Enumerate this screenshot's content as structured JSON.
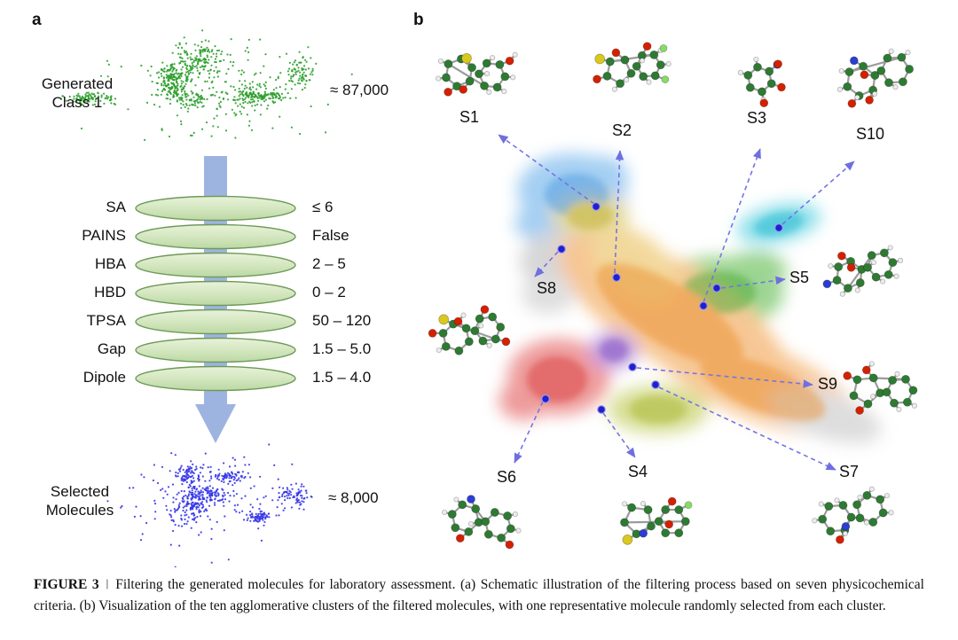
{
  "figure": {
    "panel_a": {
      "label": "a",
      "generated": {
        "label": "Generated\nClass 1",
        "count": "≈ 87,000"
      },
      "filters": [
        {
          "name": "SA",
          "value": "≤ 6"
        },
        {
          "name": "PAINS",
          "value": "False"
        },
        {
          "name": "HBA",
          "value": "2 – 5"
        },
        {
          "name": "HBD",
          "value": "0 – 2"
        },
        {
          "name": "TPSA",
          "value": "50 – 120"
        },
        {
          "name": "Gap",
          "value": "1.5 – 5.0"
        },
        {
          "name": "Dipole",
          "value": "1.5 – 4.0"
        }
      ],
      "selected": {
        "label": "Selected\nMolecules",
        "count": "≈ 8,000"
      }
    },
    "panel_b": {
      "label": "b",
      "clusters": [
        {
          "label": "S1"
        },
        {
          "label": "S2"
        },
        {
          "label": "S3"
        },
        {
          "label": "S4"
        },
        {
          "label": "S5"
        },
        {
          "label": "S6"
        },
        {
          "label": "S7"
        },
        {
          "label": "S8"
        },
        {
          "label": "S9"
        },
        {
          "label": "S10"
        }
      ]
    },
    "caption": {
      "figure_label": "FIGURE 3",
      "separator": "|",
      "text": "Filtering the generated molecules for laboratory assessment. (a) Schematic illustration of the filtering process based on seven physicochemical criteria. (b) Visualization of the ten agglomerative clusters of the filtered molecules, with one representative molecule randomly selected from each cluster."
    }
  },
  "colors": {
    "filter_fill": "#d4e7c0",
    "filter_border": "#6d9a57",
    "process_arrow": "#93acdd",
    "generated_cloud": "#2f9e2f",
    "selected_cloud": "#3535e8",
    "link_arrow": "#7474e4",
    "cluster_dot": "#2020cc"
  }
}
